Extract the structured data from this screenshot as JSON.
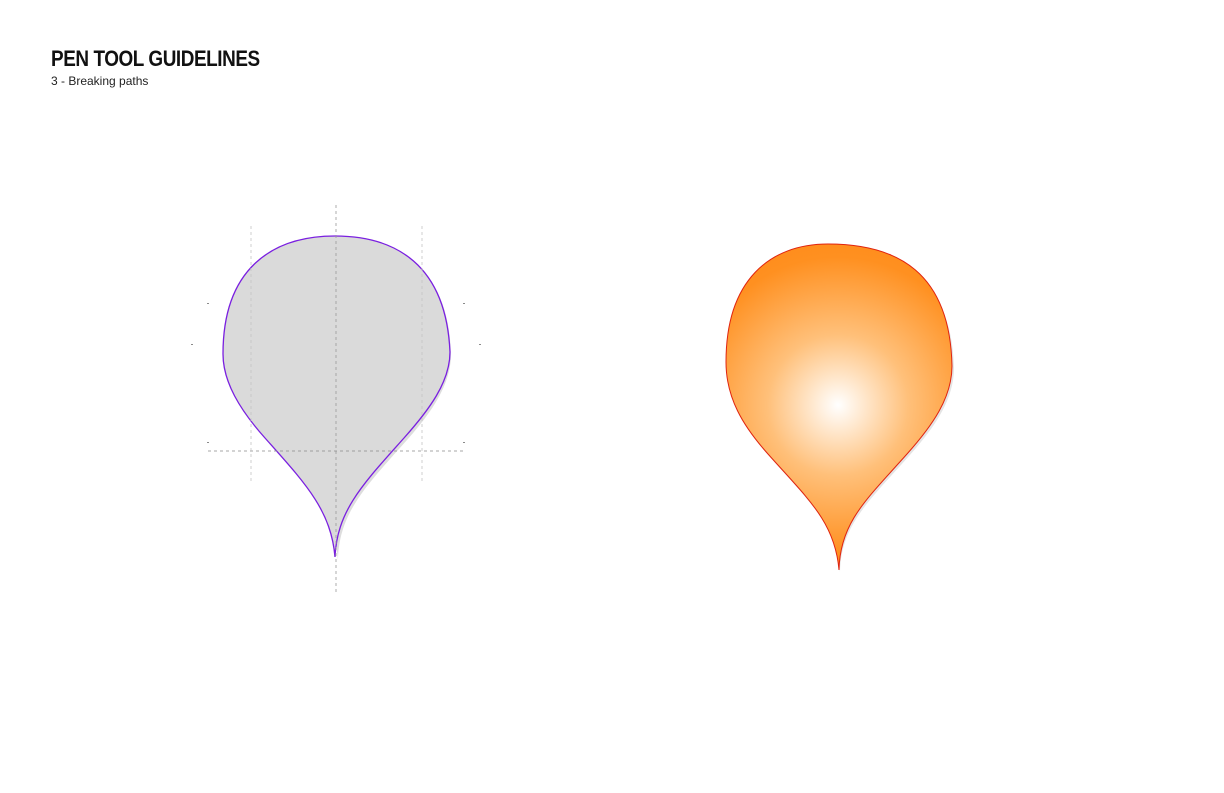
{
  "header": {
    "title": "PEN TOOL GUIDELINES",
    "subtitle": "3 - Breaking paths"
  },
  "colors": {
    "background": "#ffffff",
    "left_fill": "#dadada",
    "left_outline": "#7a1fe0",
    "guide": "#a8a8a8",
    "right_fill_light": "#ffffff",
    "right_fill_mid": "#ffc07a",
    "right_fill_dark": "#ff9020",
    "right_outline": "#e0230f",
    "shadow": "#d4d4d4"
  }
}
